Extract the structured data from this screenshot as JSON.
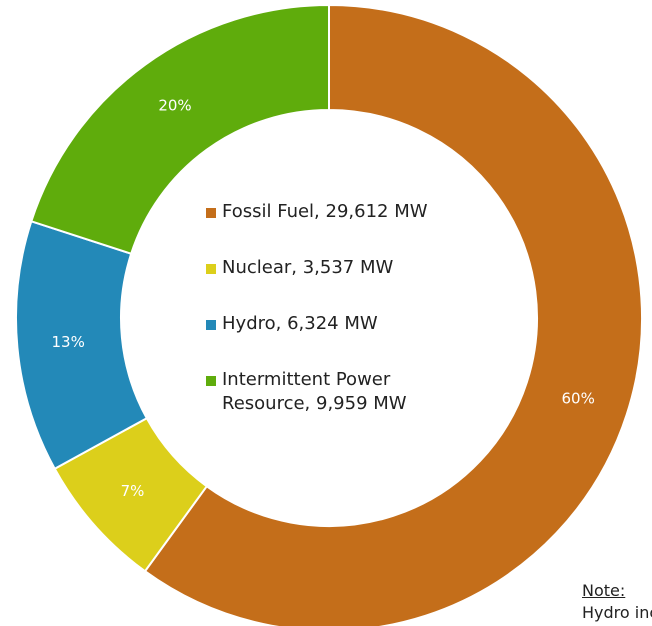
{
  "chart_data": {
    "type": "donut",
    "categories": [
      "Fossil Fuel, 29,612 MW",
      "Nuclear, 3,537 MW",
      "Hydro, 6,324 MW",
      "Intermittent Power Resource, 9,959 MW"
    ],
    "values": [
      60,
      7,
      13,
      20
    ],
    "value_labels": [
      "60%",
      "7%",
      "13%",
      "20%"
    ],
    "colors": [
      "#c46e1a",
      "#dccf1b",
      "#2389b8",
      "#5fac0c"
    ]
  },
  "note": {
    "heading": "Note:",
    "text": "Hydro inclu"
  }
}
